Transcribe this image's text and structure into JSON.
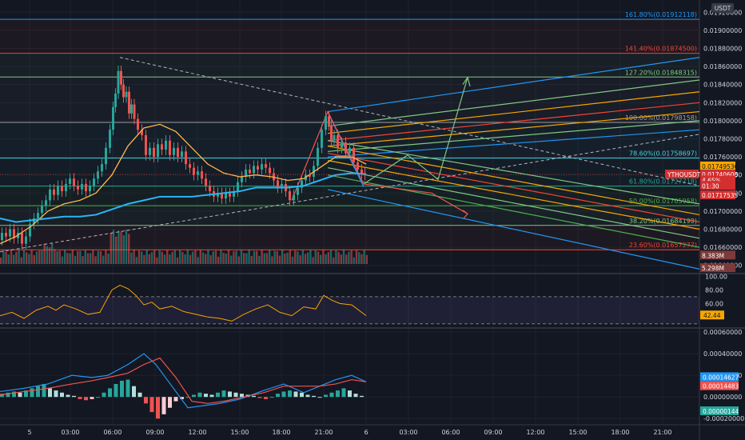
{
  "currency_badge": "USDT",
  "symbol_label": "YTHOUSDT",
  "chart_data": [
    {
      "type": "line",
      "panel": "price",
      "title": "",
      "y_ticks": [
        0.0164,
        0.0166,
        0.0168,
        0.017,
        0.0172,
        0.0174,
        0.0176,
        0.0178,
        0.018,
        0.0182,
        0.0184,
        0.0186,
        0.0188,
        0.019,
        0.0192
      ],
      "y_tick_labels": [
        "0.01640000",
        "0.01660000",
        "0.01680000",
        "0.01700000",
        "0.01720000",
        "0.01740000",
        "0.01760000",
        "0.01780000",
        "0.01800000",
        "0.01820000",
        "0.01840000",
        "0.01860000",
        "0.01880000",
        "0.01900000",
        "0.01920000"
      ],
      "ylim": [
        0.016318,
        0.019335
      ],
      "x_tick_labels": [
        "5",
        "03:00",
        "06:00",
        "09:00",
        "12:00",
        "15:00",
        "18:00",
        "21:00",
        "6",
        "03:00",
        "06:00",
        "09:00",
        "12:00",
        "15:00",
        "18:00",
        "21:00"
      ],
      "grid": true,
      "fib_levels": [
        {
          "label": "161.80%(0.01912118)",
          "value": 0.01912118,
          "color": "#2196f3"
        },
        {
          "label": "141.40%(0.01874500)",
          "value": 0.018745,
          "color": "#f44336"
        },
        {
          "label": "127.20%(0.01848315)",
          "value": 0.01848315,
          "color": "#81c784"
        },
        {
          "label": "100.00%(0.01798158)",
          "value": 0.01798158,
          "color": "#9e9e9e"
        },
        {
          "label": "78.60%(0.01758697)",
          "value": 0.01758697,
          "color": "#4dd0e1"
        },
        {
          "label": "61.80%(0.01727718)",
          "value": 0.01727718,
          "color": "#26a69a"
        },
        {
          "label": "50.00%(0.01705958)",
          "value": 0.01705958,
          "color": "#4caf50"
        },
        {
          "label": "38.20%(0.01684199)",
          "value": 0.01684199,
          "color": "#81c784"
        },
        {
          "label": "23.60%(0.01657277)",
          "value": 0.01657277,
          "color": "#f44336"
        }
      ],
      "price_tags": [
        {
          "label": "0.01749536",
          "value": 0.01749536,
          "bg": "#f7a600",
          "fg": "#131722"
        },
        {
          "label": "0.01740686",
          "value": 0.01740686,
          "bg": "#2196f3",
          "fg": "#ffffff"
        },
        {
          "label": "0.01740600",
          "value": 0.017406,
          "bg": "#d32f2f",
          "fg": "#ffffff"
        },
        {
          "label": "4.65%",
          "value": 0.01734,
          "bg": "#d32f2f",
          "fg": "#ffffff"
        },
        {
          "label": "01:30",
          "value": 0.01728,
          "bg": "#d32f2f",
          "fg": "#ffffff"
        },
        {
          "label": "0.01717535",
          "value": 0.01717535,
          "bg": "#d32f2f",
          "fg": "#ffffff"
        },
        {
          "label": "8.383M",
          "value": 0.01651,
          "bg": "#7d3a3a",
          "fg": "#ffffff"
        },
        {
          "label": "5.298M",
          "value": 0.01637,
          "bg": "#7d3a3a",
          "fg": "#ffffff"
        }
      ],
      "close_path": [
        [
          0,
          0.01668
        ],
        [
          5,
          0.01676
        ],
        [
          10,
          0.01672
        ],
        [
          15,
          0.0168
        ],
        [
          20,
          0.0167
        ],
        [
          25,
          0.01676
        ],
        [
          30,
          0.01664
        ],
        [
          35,
          0.01672
        ],
        [
          40,
          0.01686
        ],
        [
          45,
          0.01692
        ],
        [
          50,
          0.01698
        ],
        [
          55,
          0.01706
        ],
        [
          60,
          0.01712
        ],
        [
          65,
          0.01724
        ],
        [
          70,
          0.01718
        ],
        [
          75,
          0.01728
        ],
        [
          80,
          0.01722
        ],
        [
          85,
          0.0173
        ],
        [
          90,
          0.01736
        ],
        [
          95,
          0.01728
        ],
        [
          100,
          0.01724
        ],
        [
          105,
          0.0173
        ],
        [
          110,
          0.01722
        ],
        [
          115,
          0.01728
        ],
        [
          120,
          0.01736
        ],
        [
          125,
          0.01744
        ],
        [
          130,
          0.01752
        ],
        [
          135,
          0.0177
        ],
        [
          140,
          0.0179
        ],
        [
          143,
          0.01815
        ],
        [
          146,
          0.0183
        ],
        [
          150,
          0.01855
        ],
        [
          153,
          0.0184
        ],
        [
          156,
          0.01826
        ],
        [
          160,
          0.01832
        ],
        [
          163,
          0.01808
        ],
        [
          166,
          0.01818
        ],
        [
          170,
          0.01802
        ],
        [
          175,
          0.0179
        ],
        [
          180,
          0.01784
        ],
        [
          185,
          0.01762
        ],
        [
          190,
          0.0177
        ],
        [
          195,
          0.0176
        ],
        [
          200,
          0.01774
        ],
        [
          205,
          0.01768
        ],
        [
          210,
          0.01778
        ],
        [
          215,
          0.01762
        ],
        [
          220,
          0.0177
        ],
        [
          225,
          0.0176
        ],
        [
          230,
          0.01766
        ],
        [
          235,
          0.01752
        ],
        [
          240,
          0.01748
        ],
        [
          245,
          0.0174
        ],
        [
          250,
          0.01744
        ],
        [
          255,
          0.01736
        ],
        [
          260,
          0.01728
        ],
        [
          265,
          0.01722
        ],
        [
          270,
          0.01716
        ],
        [
          275,
          0.0172
        ],
        [
          280,
          0.01714
        ],
        [
          285,
          0.0172
        ],
        [
          290,
          0.01716
        ],
        [
          295,
          0.01722
        ],
        [
          300,
          0.01732
        ],
        [
          305,
          0.01738
        ],
        [
          310,
          0.01746
        ],
        [
          315,
          0.01742
        ],
        [
          320,
          0.0175
        ],
        [
          325,
          0.01746
        ],
        [
          330,
          0.01752
        ],
        [
          335,
          0.01748
        ],
        [
          340,
          0.01742
        ],
        [
          345,
          0.01734
        ],
        [
          350,
          0.01726
        ],
        [
          355,
          0.0173
        ],
        [
          360,
          0.01722
        ],
        [
          365,
          0.01712
        ],
        [
          370,
          0.01718
        ],
        [
          375,
          0.01726
        ],
        [
          380,
          0.01734
        ],
        [
          385,
          0.0174
        ],
        [
          390,
          0.01738
        ],
        [
          395,
          0.0175
        ],
        [
          400,
          0.0177
        ],
        [
          405,
          0.0179
        ],
        [
          410,
          0.01805
        ],
        [
          413,
          0.01795
        ],
        [
          416,
          0.01778
        ],
        [
          420,
          0.01784
        ],
        [
          425,
          0.0177
        ],
        [
          430,
          0.01776
        ],
        [
          435,
          0.01764
        ],
        [
          440,
          0.0177
        ],
        [
          445,
          0.01754
        ],
        [
          450,
          0.01746
        ],
        [
          455,
          0.01742
        ],
        [
          458,
          0.0174
        ]
      ],
      "ema_orange": [
        [
          0,
          0.01664
        ],
        [
          20,
          0.01672
        ],
        [
          40,
          0.01684
        ],
        [
          60,
          0.017
        ],
        [
          80,
          0.01708
        ],
        [
          100,
          0.01712
        ],
        [
          120,
          0.0172
        ],
        [
          140,
          0.0174
        ],
        [
          160,
          0.01772
        ],
        [
          180,
          0.01792
        ],
        [
          200,
          0.01796
        ],
        [
          220,
          0.01788
        ],
        [
          240,
          0.0177
        ],
        [
          260,
          0.01752
        ],
        [
          280,
          0.01742
        ],
        [
          300,
          0.01738
        ],
        [
          320,
          0.0174
        ],
        [
          340,
          0.01738
        ],
        [
          360,
          0.01734
        ],
        [
          380,
          0.01736
        ],
        [
          400,
          0.01748
        ],
        [
          420,
          0.0176
        ],
        [
          440,
          0.0176
        ],
        [
          458,
          0.01752
        ]
      ],
      "ema_blue": [
        [
          0,
          0.01692
        ],
        [
          20,
          0.01688
        ],
        [
          40,
          0.0169
        ],
        [
          60,
          0.01692
        ],
        [
          80,
          0.01694
        ],
        [
          100,
          0.01694
        ],
        [
          120,
          0.01696
        ],
        [
          140,
          0.01702
        ],
        [
          160,
          0.01708
        ],
        [
          180,
          0.01712
        ],
        [
          200,
          0.01716
        ],
        [
          220,
          0.01716
        ],
        [
          240,
          0.01716
        ],
        [
          260,
          0.01718
        ],
        [
          280,
          0.0172
        ],
        [
          300,
          0.01722
        ],
        [
          320,
          0.01726
        ],
        [
          340,
          0.01726
        ],
        [
          360,
          0.01726
        ],
        [
          380,
          0.01728
        ],
        [
          400,
          0.01734
        ],
        [
          420,
          0.0174
        ],
        [
          440,
          0.01742
        ],
        [
          458,
          0.01741
        ]
      ]
    },
    {
      "type": "line",
      "panel": "rsi",
      "y_ticks": [
        100,
        80,
        60
      ],
      "y_tick_labels": [
        "100.00",
        "80.00",
        "60.00"
      ],
      "ylim": [
        25,
        103
      ],
      "upper_band": 70,
      "lower_band": 30,
      "current_label": "42.44",
      "current_value": 42.44,
      "values": [
        [
          0,
          42
        ],
        [
          15,
          47
        ],
        [
          30,
          38
        ],
        [
          45,
          50
        ],
        [
          60,
          56
        ],
        [
          70,
          50
        ],
        [
          80,
          58
        ],
        [
          95,
          52
        ],
        [
          110,
          44
        ],
        [
          125,
          47
        ],
        [
          140,
          80
        ],
        [
          150,
          87
        ],
        [
          160,
          82
        ],
        [
          170,
          72
        ],
        [
          180,
          58
        ],
        [
          190,
          62
        ],
        [
          200,
          52
        ],
        [
          215,
          56
        ],
        [
          230,
          48
        ],
        [
          245,
          44
        ],
        [
          260,
          40
        ],
        [
          275,
          38
        ],
        [
          290,
          34
        ],
        [
          305,
          44
        ],
        [
          320,
          52
        ],
        [
          335,
          58
        ],
        [
          350,
          47
        ],
        [
          365,
          42
        ],
        [
          380,
          55
        ],
        [
          395,
          52
        ],
        [
          405,
          72
        ],
        [
          415,
          65
        ],
        [
          425,
          60
        ],
        [
          440,
          58
        ],
        [
          458,
          42
        ]
      ]
    },
    {
      "type": "bar",
      "panel": "macd",
      "y_ticks": [
        0.0006,
        0.0004,
        0.0002,
        0.0,
        -0.0002
      ],
      "y_tick_labels": [
        "0.00060000",
        "0.00040000",
        "0.00020000",
        "0.00000000",
        "-0.00020000"
      ],
      "ylim": [
        -0.00025,
        0.00063
      ],
      "macd_label": "0.00014627",
      "macd_value": 0.00014627,
      "signal_label": "0.00014483",
      "signal_value": 0.00014483,
      "hist_label": "0.00000144",
      "hist_value": 1.44e-06,
      "macd_line": [
        [
          0,
          5e-05
        ],
        [
          30,
          8e-05
        ],
        [
          60,
          0.00012
        ],
        [
          90,
          0.0002
        ],
        [
          115,
          0.00018
        ],
        [
          135,
          0.0002
        ],
        [
          160,
          0.0003
        ],
        [
          180,
          0.0004
        ],
        [
          195,
          0.0003
        ],
        [
          215,
          0.0001
        ],
        [
          235,
          -0.0001
        ],
        [
          255,
          -8e-05
        ],
        [
          275,
          -6e-05
        ],
        [
          300,
          -2e-05
        ],
        [
          330,
          6e-05
        ],
        [
          355,
          0.00012
        ],
        [
          380,
          4e-05
        ],
        [
          400,
          0.0001
        ],
        [
          420,
          0.00016
        ],
        [
          440,
          0.0002
        ],
        [
          458,
          0.00014
        ]
      ],
      "signal_line": [
        [
          0,
          2e-05
        ],
        [
          30,
          5e-05
        ],
        [
          60,
          8e-05
        ],
        [
          90,
          0.00012
        ],
        [
          115,
          0.00015
        ],
        [
          135,
          0.00018
        ],
        [
          160,
          0.00022
        ],
        [
          180,
          0.0003
        ],
        [
          200,
          0.00036
        ],
        [
          220,
          0.00018
        ],
        [
          240,
          -4e-05
        ],
        [
          260,
          -6e-05
        ],
        [
          280,
          -4e-05
        ],
        [
          305,
          0.0
        ],
        [
          330,
          4e-05
        ],
        [
          355,
          0.0001
        ],
        [
          380,
          0.0001
        ],
        [
          400,
          0.0001
        ],
        [
          420,
          0.00012
        ],
        [
          440,
          0.00016
        ],
        [
          458,
          0.00014
        ]
      ],
      "histogram": [
        3e-05,
        4e-05,
        5e-05,
        4e-05,
        6e-05,
        8e-05,
        0.0001,
        0.00012,
        8e-05,
        6e-05,
        4e-05,
        2e-05,
        1e-05,
        -2e-05,
        -3e-05,
        -2e-05,
        0.0,
        4e-05,
        8e-05,
        0.00012,
        0.00015,
        0.00016,
        0.0001,
        4e-05,
        -6e-05,
        -0.00014,
        -0.0002,
        -0.00016,
        -0.0001,
        -4e-05,
        -2e-05,
        0.0,
        2e-05,
        4e-05,
        3e-05,
        2e-05,
        4e-05,
        6e-05,
        5e-05,
        4e-05,
        3e-05,
        2e-05,
        1e-05,
        -1e-05,
        -2e-05,
        0.0,
        3e-05,
        5e-05,
        6e-05,
        5e-05,
        4e-05,
        2e-05,
        1e-05,
        0.0,
        2e-05,
        4e-05,
        6e-05,
        8e-05,
        6e-05,
        3e-05,
        1e-05
      ]
    }
  ]
}
